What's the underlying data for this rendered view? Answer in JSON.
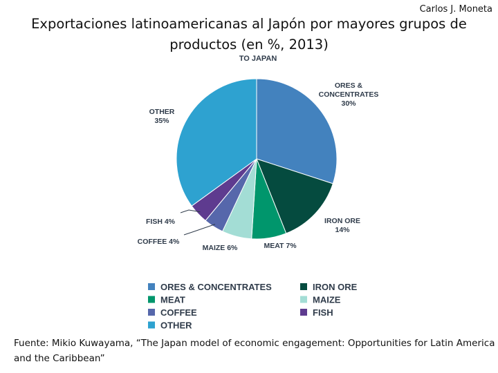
{
  "slide": {
    "author": "Carlos J. Moneta",
    "title": "Exportaciones latinoamericanas al Japón por mayores grupos de productos (en %, 2013)",
    "source": "Fuente: Mikio Kuwayama, “The Japan model of economic engagement: Opportunities for Latin America and the Caribbean”"
  },
  "chart_data": {
    "type": "pie",
    "title": "TO JAPAN",
    "slices": [
      {
        "name": "ORES & CONCENTRATES",
        "label_lines": [
          "ORES &",
          "CONCENTRATES",
          "30%"
        ],
        "value": 30,
        "color": "#4382be"
      },
      {
        "name": "IRON ORE",
        "label_lines": [
          "IRON ORE",
          "14%"
        ],
        "value": 14,
        "color": "#054b3f"
      },
      {
        "name": "MEAT",
        "label_lines": [
          "MEAT 7%"
        ],
        "value": 7,
        "color": "#00966c"
      },
      {
        "name": "MAIZE",
        "label_lines": [
          "MAIZE 6%"
        ],
        "value": 6,
        "color": "#a3ddd5"
      },
      {
        "name": "COFFEE",
        "label_lines": [
          "COFFEE 4%"
        ],
        "value": 4,
        "color": "#5667ab"
      },
      {
        "name": "FISH",
        "label_lines": [
          "FISH 4%"
        ],
        "value": 4,
        "color": "#5e3b8f"
      },
      {
        "name": "OTHER",
        "label_lines": [
          "OTHER",
          "35%"
        ],
        "value": 35,
        "color": "#2ea2d0"
      }
    ],
    "legend": {
      "placement": "bottom",
      "columns": [
        [
          "ORES & CONCENTRATES",
          "MEAT",
          "COFFEE",
          "OTHER"
        ],
        [
          "IRON ORE",
          "MAIZE",
          "FISH"
        ]
      ]
    }
  }
}
